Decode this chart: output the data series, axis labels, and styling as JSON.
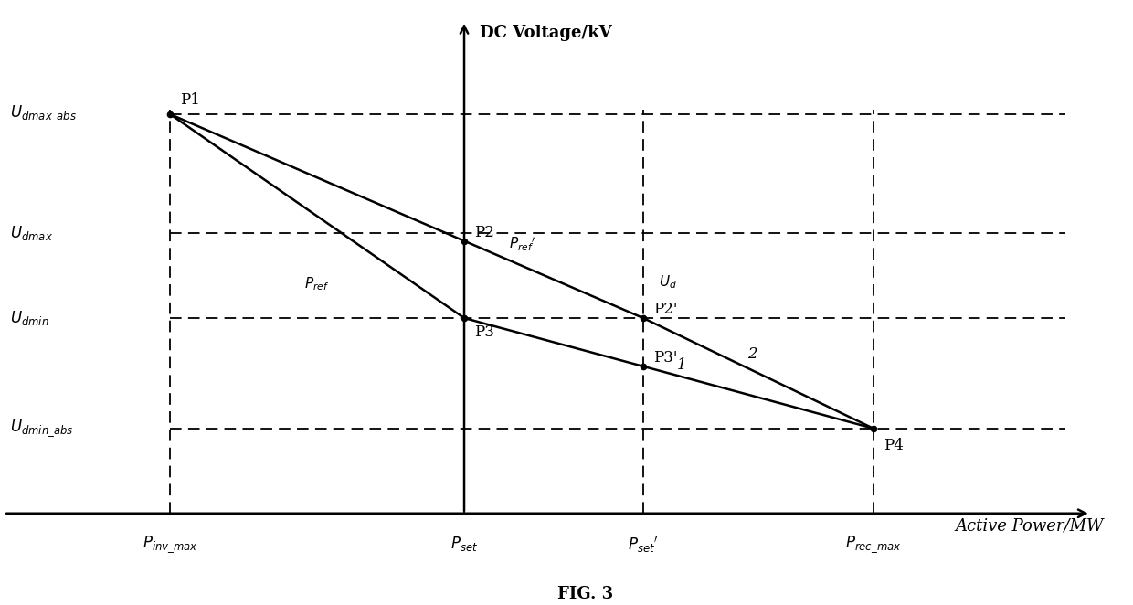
{
  "title": "DC Voltage/kV",
  "xlabel": "Active Power/MW",
  "fig_label": "FIG. 3",
  "P_inv_x": 1.5,
  "P_set_x": 3.8,
  "P_setp_x": 5.2,
  "P_rec_x": 7.0,
  "U_dmaxabs_y": 5.2,
  "U_dmax_y": 3.8,
  "U_dmin_y": 2.8,
  "U_dminabs_y": 1.5,
  "x_min": 0.2,
  "x_max": 9.0,
  "y_min": 0.5,
  "y_max": 6.5,
  "lw": 1.8,
  "dash_lw": 1.3,
  "font_size": 12,
  "title_font_size": 13
}
